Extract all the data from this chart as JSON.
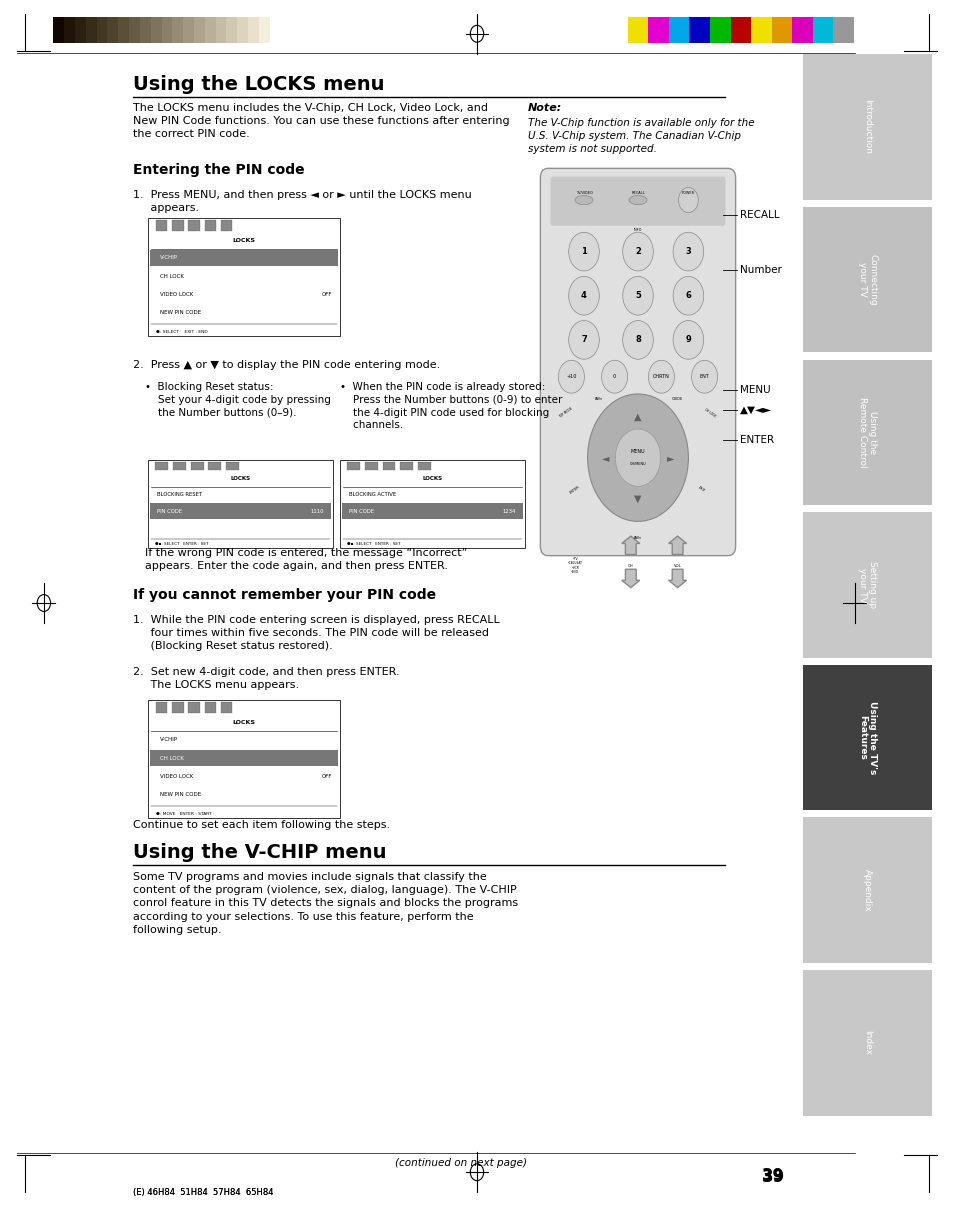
{
  "page_width": 9.54,
  "page_height": 12.06,
  "dpi": 100,
  "bg_color": "#ffffff",
  "top_bar_colors_left": [
    "#100800",
    "#1e1408",
    "#2a2010",
    "#362c1a",
    "#423824",
    "#4e442e",
    "#5a5038",
    "#665c44",
    "#726850",
    "#7e745c",
    "#8a8068",
    "#968c74",
    "#a29880",
    "#aea48c",
    "#bab098",
    "#c6bca4",
    "#d2c8b0",
    "#ded4bc",
    "#eae0cc",
    "#f6eedd",
    "#ffffff"
  ],
  "top_bar_colors_right": [
    "#f0e000",
    "#e000d0",
    "#00a8e8",
    "#0000c0",
    "#00b800",
    "#b80000",
    "#f0e000",
    "#e09800",
    "#d800b8",
    "#00b8d8",
    "#989898"
  ],
  "sidebar_tabs": [
    {
      "label": "Introduction",
      "active": false,
      "color": "#c8c8c8"
    },
    {
      "label": "Connecting\nyour TV",
      "active": false,
      "color": "#c0c0c0"
    },
    {
      "label": "Using the\nRemote Control",
      "active": false,
      "color": "#c0c0c0"
    },
    {
      "label": "Setting up\nyour TV",
      "active": false,
      "color": "#c8c8c8"
    },
    {
      "label": "Using the TV's\nFeatures",
      "active": true,
      "color": "#404040"
    },
    {
      "label": "Appendix",
      "active": false,
      "color": "#c8c8c8"
    },
    {
      "label": "Index",
      "active": false,
      "color": "#c8c8c8"
    }
  ],
  "main_title": "Using the LOCKS menu",
  "section2_title": "Using the V-CHIP menu",
  "note_title": "Note:",
  "note_text": "The V-Chip function is available only for the\nU.S. V-Chip system. The Canadian V-Chip\nsystem is not supported.",
  "page_number": "39",
  "footer_text": "(E) 46H84  51H84  57H84  65H84",
  "remote_labels": [
    "RECALL",
    "Number",
    "MENU",
    "▲▼◄►",
    "ENTER"
  ]
}
